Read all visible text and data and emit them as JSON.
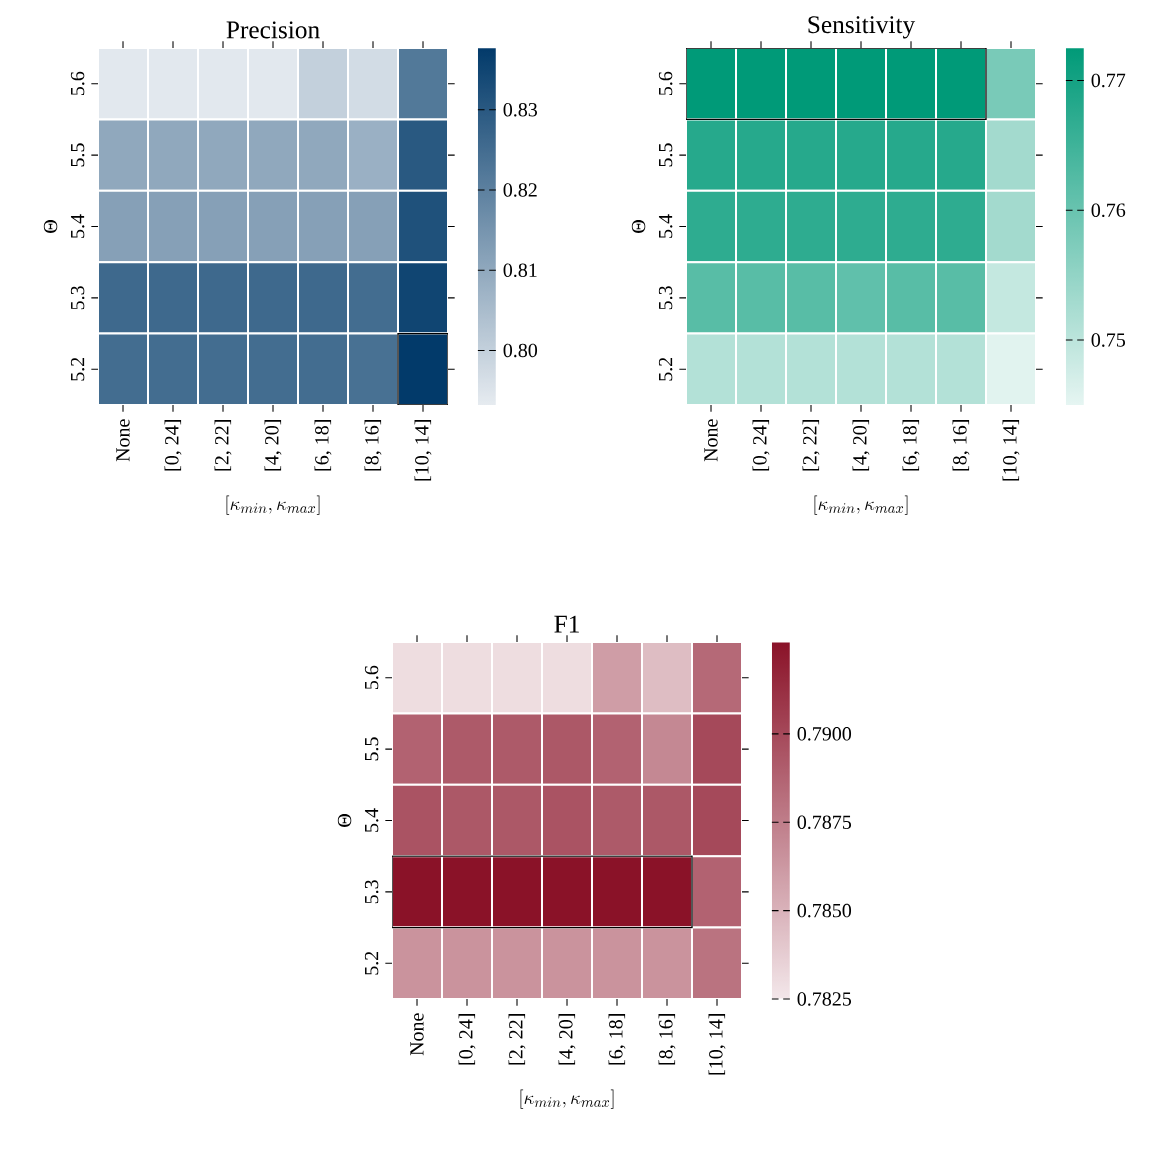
{
  "chart_data": [
    {
      "type": "heatmap",
      "title": "Precision",
      "xlabel": "[\\kappa_{min}, \\kappa_{max}]",
      "ylabel": "Θ",
      "color": "#023a6a",
      "categories": [
        "None",
        "[0, 24]",
        "[2, 22]",
        "[4, 20]",
        "[6, 18]",
        "[8, 16]",
        "[10, 14]"
      ],
      "y_categories": [
        "5.6",
        "5.5",
        "5.4",
        "5.3",
        "5.2"
      ],
      "cells": [
        [
          0.794,
          0.794,
          0.794,
          0.794,
          0.8,
          0.797,
          0.822
        ],
        [
          0.81,
          0.81,
          0.81,
          0.81,
          0.81,
          0.808,
          0.83
        ],
        [
          0.812,
          0.812,
          0.812,
          0.812,
          0.812,
          0.812,
          0.832
        ],
        [
          0.826,
          0.826,
          0.826,
          0.826,
          0.826,
          0.825,
          0.835
        ],
        [
          0.825,
          0.825,
          0.825,
          0.825,
          0.825,
          0.824,
          0.8377
        ]
      ],
      "clim": [
        0.7932,
        0.8377
      ],
      "cticks": [
        {
          "value": 0.8,
          "label": "0.80"
        },
        {
          "value": 0.81,
          "label": "0.81"
        },
        {
          "value": 0.82,
          "label": "0.82"
        },
        {
          "value": 0.83,
          "label": "0.83"
        }
      ]
    },
    {
      "type": "heatmap",
      "title": "Sensitivity",
      "xlabel": "[\\kappa_{min}, \\kappa_{max}]",
      "ylabel": "Θ",
      "color": "#009a78",
      "categories": [
        "None",
        "[0, 24]",
        "[2, 22]",
        "[4, 20]",
        "[6, 18]",
        "[8, 16]",
        "[10, 14]"
      ],
      "y_categories": [
        "5.6",
        "5.5",
        "5.4",
        "5.3",
        "5.2"
      ],
      "cells": [
        [
          0.7725,
          0.7725,
          0.7725,
          0.7725,
          0.7725,
          0.7725,
          0.758
        ],
        [
          0.768,
          0.768,
          0.768,
          0.768,
          0.768,
          0.768,
          0.753
        ],
        [
          0.767,
          0.767,
          0.767,
          0.767,
          0.767,
          0.767,
          0.753
        ],
        [
          0.762,
          0.762,
          0.762,
          0.761,
          0.762,
          0.762,
          0.749
        ],
        [
          0.751,
          0.751,
          0.751,
          0.751,
          0.751,
          0.751,
          0.7455
        ]
      ],
      "clim": [
        0.745,
        0.7725
      ],
      "cticks": [
        {
          "value": 0.75,
          "label": "0.75"
        },
        {
          "value": 0.76,
          "label": "0.76"
        },
        {
          "value": 0.77,
          "label": "0.77"
        }
      ]
    },
    {
      "type": "heatmap",
      "title": "F1",
      "xlabel": "[\\kappa_{min}, \\kappa_{max}]",
      "ylabel": "Θ",
      "color": "#8a1228",
      "categories": [
        "None",
        "[0, 24]",
        "[2, 22]",
        "[4, 20]",
        "[6, 18]",
        "[8, 16]",
        "[10, 14]"
      ],
      "y_categories": [
        "5.6",
        "5.5",
        "5.4",
        "5.3",
        "5.2"
      ],
      "cells": [
        [
          0.783,
          0.783,
          0.783,
          0.783,
          0.786,
          0.7845,
          0.7885
        ],
        [
          0.7888,
          0.7892,
          0.7892,
          0.7893,
          0.7888,
          0.787,
          0.79
        ],
        [
          0.7895,
          0.7893,
          0.7893,
          0.7895,
          0.7892,
          0.7893,
          0.79
        ],
        [
          0.7926,
          0.7926,
          0.7926,
          0.7926,
          0.7926,
          0.7926,
          0.7888
        ],
        [
          0.7865,
          0.7865,
          0.7865,
          0.7865,
          0.7865,
          0.7865,
          0.788
        ]
      ],
      "clim": [
        0.7825,
        0.7926
      ],
      "cticks": [
        {
          "value": 0.7825,
          "label": "0.7825"
        },
        {
          "value": 0.785,
          "label": "0.7850"
        },
        {
          "value": 0.7875,
          "label": "0.7875"
        },
        {
          "value": 0.79,
          "label": "0.7900"
        }
      ]
    }
  ]
}
